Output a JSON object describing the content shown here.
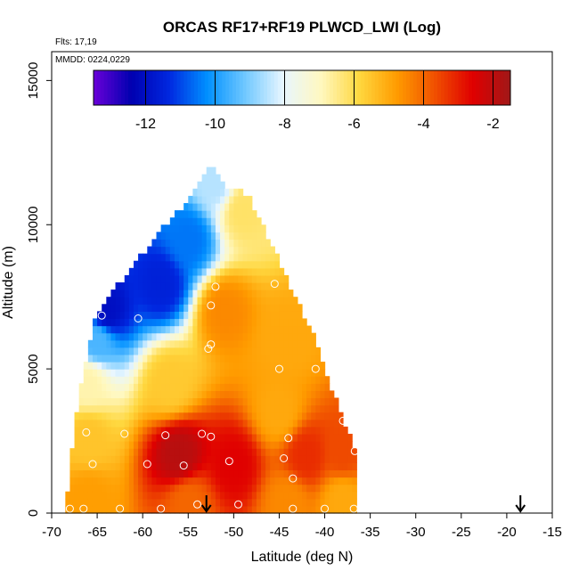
{
  "chart_data": {
    "type": "heatmap",
    "title": "ORCAS RF17+RF19 PLWCD_LWI (Log)",
    "xlabel": "Latitude (deg N)",
    "ylabel": "Altitude (m)",
    "annotations": [
      "Flts: 17,19",
      "MMDD: 0224,0229"
    ],
    "xlim": [
      -70,
      -15
    ],
    "ylim": [
      0,
      16000
    ],
    "xticks": [
      "-70",
      "-65",
      "-60",
      "-55",
      "-50",
      "-45",
      "-40",
      "-35",
      "-30",
      "-25",
      "-20",
      "-15"
    ],
    "xtick_values": [
      -70,
      -65,
      -60,
      -55,
      -50,
      -45,
      -40,
      -35,
      -30,
      -25,
      -20,
      -15
    ],
    "yticks": [
      "0",
      "5000",
      "10000",
      "15000"
    ],
    "ytick_values": [
      0,
      5000,
      10000,
      15000
    ],
    "colorbar": {
      "range": [
        -13.5,
        -1.5
      ],
      "ticks": [
        "-12",
        "-10",
        "-8",
        "-6",
        "-4",
        "-2"
      ],
      "tick_values": [
        -12,
        -10,
        -8,
        -6,
        -4,
        -2
      ],
      "colors": [
        "#6a00d8",
        "#0000b0",
        "#0028e0",
        "#0090ff",
        "#70c8ff",
        "#e8f6ff",
        "#fff8c0",
        "#ffd840",
        "#ff9c00",
        "#f05000",
        "#e00000",
        "#a01818"
      ]
    },
    "arrows_at_latitude": [
      -53,
      -18.5
    ],
    "data_region_outline": [
      [
        -68.5,
        0
      ],
      [
        -67.5,
        3000
      ],
      [
        -66.5,
        5000
      ],
      [
        -65,
        7000
      ],
      [
        -62,
        8200
      ],
      [
        -58.5,
        9600
      ],
      [
        -55,
        10900
      ],
      [
        -52.5,
        12000
      ],
      [
        -51,
        11300
      ],
      [
        -48.5,
        11100
      ],
      [
        -41,
        6000
      ],
      [
        -38,
        3200
      ],
      [
        -36.5,
        2100
      ],
      [
        -36.5,
        0
      ]
    ],
    "field_samples": [
      {
        "lat": -66,
        "alt": 500,
        "value": -4.8
      },
      {
        "lat": -55,
        "alt": 400,
        "value": -4.0
      },
      {
        "lat": -44,
        "alt": 400,
        "value": -4.5
      },
      {
        "lat": -38,
        "alt": 500,
        "value": -5.0
      },
      {
        "lat": -66,
        "alt": 2600,
        "value": -5.5
      },
      {
        "lat": -56,
        "alt": 2000,
        "value": -1.9
      },
      {
        "lat": -50,
        "alt": 1700,
        "value": -2.6
      },
      {
        "lat": -42,
        "alt": 2000,
        "value": -3.2
      },
      {
        "lat": -38,
        "alt": 2100,
        "value": -3.6
      },
      {
        "lat": -66,
        "alt": 4500,
        "value": -6.8
      },
      {
        "lat": -57,
        "alt": 4500,
        "value": -5.6
      },
      {
        "lat": -45,
        "alt": 3500,
        "value": -5.0
      },
      {
        "lat": -65,
        "alt": 6000,
        "value": -9.5
      },
      {
        "lat": -64,
        "alt": 7000,
        "value": -12.0
      },
      {
        "lat": -58,
        "alt": 8000,
        "value": -11.5
      },
      {
        "lat": -55,
        "alt": 9500,
        "value": -10.5
      },
      {
        "lat": -52,
        "alt": 11500,
        "value": -8.5
      },
      {
        "lat": -49,
        "alt": 10500,
        "value": -6.2
      },
      {
        "lat": -51,
        "alt": 7000,
        "value": -4.5
      },
      {
        "lat": -44,
        "alt": 6000,
        "value": -5.0
      }
    ],
    "observations": [
      {
        "lat": -64.5,
        "alt": 6850
      },
      {
        "lat": -60.5,
        "alt": 6750
      },
      {
        "lat": -52.0,
        "alt": 7850
      },
      {
        "lat": -52.5,
        "alt": 7200
      },
      {
        "lat": -45.5,
        "alt": 7950
      },
      {
        "lat": -52.5,
        "alt": 5850
      },
      {
        "lat": -52.8,
        "alt": 5700
      },
      {
        "lat": -45.0,
        "alt": 5000
      },
      {
        "lat": -41.0,
        "alt": 5000
      },
      {
        "lat": -66.2,
        "alt": 2800
      },
      {
        "lat": -62.0,
        "alt": 2750
      },
      {
        "lat": -57.5,
        "alt": 2700
      },
      {
        "lat": -53.5,
        "alt": 2750
      },
      {
        "lat": -52.5,
        "alt": 2650
      },
      {
        "lat": -44.0,
        "alt": 2600
      },
      {
        "lat": -38.0,
        "alt": 3200
      },
      {
        "lat": -36.7,
        "alt": 2150
      },
      {
        "lat": -65.5,
        "alt": 1700
      },
      {
        "lat": -59.5,
        "alt": 1700
      },
      {
        "lat": -55.5,
        "alt": 1650
      },
      {
        "lat": -50.5,
        "alt": 1800
      },
      {
        "lat": -44.5,
        "alt": 1900
      },
      {
        "lat": -43.5,
        "alt": 1200
      },
      {
        "lat": -68.0,
        "alt": 150
      },
      {
        "lat": -66.5,
        "alt": 150
      },
      {
        "lat": -62.5,
        "alt": 150
      },
      {
        "lat": -58.0,
        "alt": 150
      },
      {
        "lat": -54.0,
        "alt": 300
      },
      {
        "lat": -49.5,
        "alt": 300
      },
      {
        "lat": -43.5,
        "alt": 150
      },
      {
        "lat": -40.0,
        "alt": 150
      },
      {
        "lat": -36.8,
        "alt": 150
      }
    ]
  }
}
